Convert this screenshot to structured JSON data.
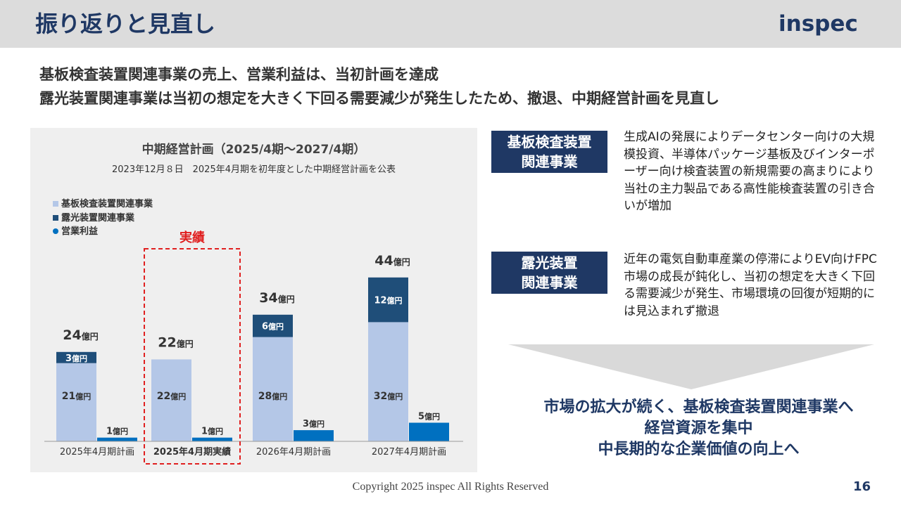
{
  "header": {
    "title": "振り返りと見直し",
    "logo": "inspec"
  },
  "lead": {
    "line1": "基板検査装置関連事業の売上、営業利益は、当初計画を達成",
    "line2": "露光装置関連事業は当初の想定を大きく下回る需要減少が発生したため、撤退、中期経営計画を見直し"
  },
  "chart_panel": {
    "title": "中期経営計画（2025/4期～2027/4期）",
    "subtitle": "2023年12月８日　2025年4月期を初年度とした中期経営計画を公表",
    "actual_label": "実績"
  },
  "chart_data": {
    "type": "bar",
    "categories": [
      "2025年4月期計画",
      "2025年4月期実績",
      "2026年4月期計画",
      "2027年4月期計画"
    ],
    "unit": "億円",
    "series": [
      {
        "name": "基板検査装置関連事業",
        "values": [
          21,
          22,
          28,
          32
        ],
        "labels": [
          "21億円",
          "22億円",
          "28億円",
          "32億円"
        ],
        "color": "#b4c7e7",
        "stack": "sales"
      },
      {
        "name": "露光装置関連事業",
        "values": [
          3,
          0,
          6,
          12
        ],
        "labels": [
          "3億円",
          "",
          "6億円",
          "12億円"
        ],
        "color": "#1f4e79",
        "stack": "sales"
      },
      {
        "name": "営業利益",
        "values": [
          1,
          1,
          3,
          5
        ],
        "labels": [
          "1億円",
          "1億円",
          "3億円",
          "5億円"
        ],
        "color": "#0070c0",
        "stack": "profit"
      }
    ],
    "totals": [
      24,
      22,
      34,
      44
    ],
    "total_labels": [
      "24億円",
      "22億円",
      "34億円",
      "44億円"
    ],
    "highlight_category": "2025年4月期実績",
    "legend_position": "top-left"
  },
  "segments": [
    {
      "label": "基板検査装置\n関連事業",
      "description": "生成AIの発展によりデータセンター向けの大規模投資、半導体パッケージ基板及びインターポーザー向け検査装置の新規需要の高まりにより当社の主力製品である高性能検査装置の引き合いが増加"
    },
    {
      "label": "露光装置\n関連事業",
      "description": "近年の電気自動車産業の停滞によりEV向けFPC市場の成長が鈍化し、当初の想定を大きく下回る需要減少が発生、市場環境の回復が短期的には見込まれず撤退"
    }
  ],
  "conclusion": {
    "line1": "市場の拡大が続く、基板検査装置関連事業へ",
    "line2": "経営資源を集中",
    "line3": "中長期的な企業価値の向上へ"
  },
  "footer": {
    "copyright": "Copyright 2025 inspec All Rights Reserved",
    "page": "16"
  }
}
